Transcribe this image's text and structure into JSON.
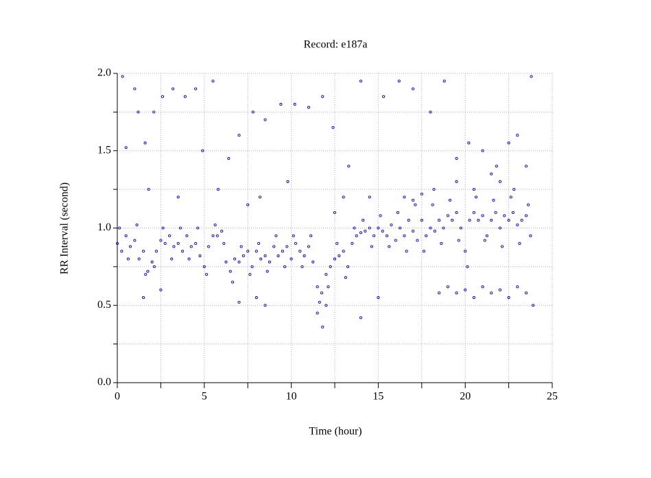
{
  "chart_data": {
    "type": "scatter",
    "title": "Record:  e187a",
    "x_label": "Time (hour)",
    "y_label": "RR Interval (second)",
    "color": "#0000ff",
    "grid": true,
    "xlim": [
      0,
      25
    ],
    "xticks": [
      0,
      5,
      10,
      15,
      20,
      25
    ],
    "x_minor_ticks": [
      2.5,
      7.5,
      12.5,
      17.5,
      22.5
    ],
    "ylim": [
      0,
      2
    ],
    "yticks": [
      {
        "value": 0,
        "label": "0.0"
      },
      0.5,
      {
        "value": 1,
        "label": "1.0"
      },
      1.5,
      {
        "value": 2,
        "label": "2.0"
      }
    ],
    "y_minor_ticks": [
      0.25,
      0.75,
      1.25,
      1.75
    ],
    "x": [
      0,
      0.25,
      0.5,
      0.75,
      1,
      1.25,
      1.5,
      1.75,
      2,
      2.25,
      2.5,
      2.75,
      3,
      3.25,
      3.5,
      3.75,
      4,
      4.25,
      4.5,
      4.75,
      5,
      5.25,
      5.5,
      5.75,
      6,
      6.25,
      6.5,
      6.75,
      7,
      7.25,
      7.5,
      7.75,
      8,
      8.25,
      8.5,
      8.75,
      9,
      9.25,
      9.5,
      9.75,
      10,
      10.25,
      10.5,
      10.75,
      11,
      11.25,
      11.5,
      11.75,
      12,
      12.25,
      12.5,
      12.75,
      13,
      13.25,
      13.5,
      13.75,
      14,
      14.25,
      14.5,
      14.75,
      15,
      15.25,
      15.5,
      15.75,
      16,
      16.25,
      16.5,
      16.75,
      17,
      17.25,
      17.5,
      17.75,
      18,
      18.25,
      18.5,
      18.75,
      19,
      19.25,
      19.5,
      19.75,
      20,
      20.25,
      20.5,
      20.75,
      21,
      21.25,
      21.5,
      21.75,
      22,
      22.25,
      22.5,
      22.75,
      23,
      23.25,
      23.5,
      23.75,
      0.125,
      0.625,
      1.125,
      1.625,
      2.125,
      2.625,
      3.125,
      3.625,
      4.125,
      4.625,
      5.125,
      5.625,
      6.125,
      6.625,
      7.125,
      7.625,
      8.125,
      8.625,
      9.125,
      9.625,
      10.125,
      10.625,
      11.125,
      11.625,
      12.125,
      12.625,
      13.125,
      13.625,
      14.125,
      14.625,
      15.125,
      15.625,
      16.125,
      16.625,
      17.125,
      17.625,
      18.125,
      18.625,
      19.125,
      19.625,
      20.125,
      20.625,
      21.125,
      21.625,
      22.125,
      22.625,
      23.125,
      23.625,
      0.3,
      0.5,
      1,
      1.2,
      1.6,
      2.1,
      2.6,
      3.2,
      3.9,
      4.5,
      4.9,
      5.5,
      6.4,
      7,
      7.8,
      8.5,
      9.4,
      10.2,
      11,
      11.8,
      12.4,
      13.3,
      14,
      14.5,
      15.3,
      16.2,
      17,
      18,
      18.8,
      19.5,
      20.2,
      21,
      21.8,
      22.5,
      23,
      23.8,
      1.5,
      2.5,
      7,
      8,
      8.5,
      11.5,
      11.8,
      12,
      14,
      15,
      18.5,
      19,
      19.5,
      20,
      20.5,
      21,
      21.5,
      22,
      22.5,
      23,
      23.5,
      23.9,
      1.8,
      3.5,
      5.8,
      7.5,
      8.2,
      9.8,
      12.5,
      13,
      16.5,
      17,
      17.5,
      18.2,
      19.5,
      20.5,
      21.5,
      22,
      22.8,
      23.5
    ],
    "values": [
      0.9,
      0.85,
      0.95,
      0.88,
      0.92,
      0.8,
      0.85,
      0.72,
      0.78,
      0.85,
      0.92,
      0.9,
      0.95,
      0.88,
      0.9,
      0.85,
      0.95,
      0.88,
      0.9,
      0.82,
      0.75,
      0.88,
      0.95,
      0.95,
      0.98,
      0.78,
      0.72,
      0.8,
      0.78,
      0.82,
      0.85,
      0.75,
      0.85,
      0.8,
      0.82,
      0.78,
      0.88,
      0.82,
      0.85,
      0.88,
      0.8,
      0.9,
      0.85,
      0.82,
      0.88,
      0.78,
      0.62,
      0.58,
      0.7,
      0.75,
      0.8,
      0.82,
      0.85,
      0.75,
      0.9,
      0.95,
      0.97,
      0.98,
      1.0,
      0.95,
      1.0,
      0.98,
      0.95,
      1.02,
      0.92,
      1.0,
      0.95,
      1.05,
      0.98,
      0.92,
      1.05,
      0.95,
      1.0,
      0.98,
      1.05,
      1.0,
      1.08,
      1.05,
      1.1,
      1.0,
      0.85,
      1.05,
      1.1,
      1.05,
      1.08,
      0.95,
      1.05,
      1.1,
      1.0,
      1.08,
      1.05,
      1.1,
      1.02,
      1.05,
      1.08,
      0.95,
      1.0,
      0.8,
      1.02,
      0.7,
      0.75,
      1.0,
      0.8,
      1.0,
      0.8,
      1.0,
      0.7,
      1.02,
      0.9,
      0.65,
      0.88,
      0.7,
      0.9,
      0.72,
      0.95,
      0.75,
      0.95,
      0.75,
      0.95,
      0.52,
      0.62,
      0.9,
      0.68,
      1.0,
      1.05,
      0.88,
      1.08,
      0.88,
      1.1,
      0.85,
      1.15,
      0.85,
      1.15,
      0.9,
      1.18,
      0.92,
      0.75,
      1.2,
      0.92,
      1.18,
      0.88,
      1.2,
      0.9,
      1.15,
      1.98,
      1.52,
      1.9,
      1.75,
      1.55,
      1.75,
      1.85,
      1.9,
      1.85,
      1.9,
      1.5,
      1.95,
      1.45,
      1.6,
      1.75,
      1.7,
      1.8,
      1.8,
      1.78,
      1.85,
      1.65,
      1.4,
      1.95,
      1.2,
      1.85,
      1.95,
      1.9,
      1.75,
      1.95,
      1.45,
      1.55,
      1.5,
      1.4,
      1.55,
      1.6,
      1.98,
      0.55,
      0.6,
      0.52,
      0.55,
      0.5,
      0.45,
      0.36,
      0.5,
      0.42,
      0.55,
      0.58,
      0.62,
      0.58,
      0.6,
      0.55,
      0.62,
      0.58,
      0.6,
      0.55,
      0.62,
      0.58,
      0.5,
      1.25,
      1.2,
      1.25,
      1.15,
      1.2,
      1.3,
      1.1,
      1.2,
      1.2,
      1.18,
      1.22,
      1.25,
      1.3,
      1.25,
      1.35,
      1.3,
      1.25,
      1.4
    ]
  }
}
